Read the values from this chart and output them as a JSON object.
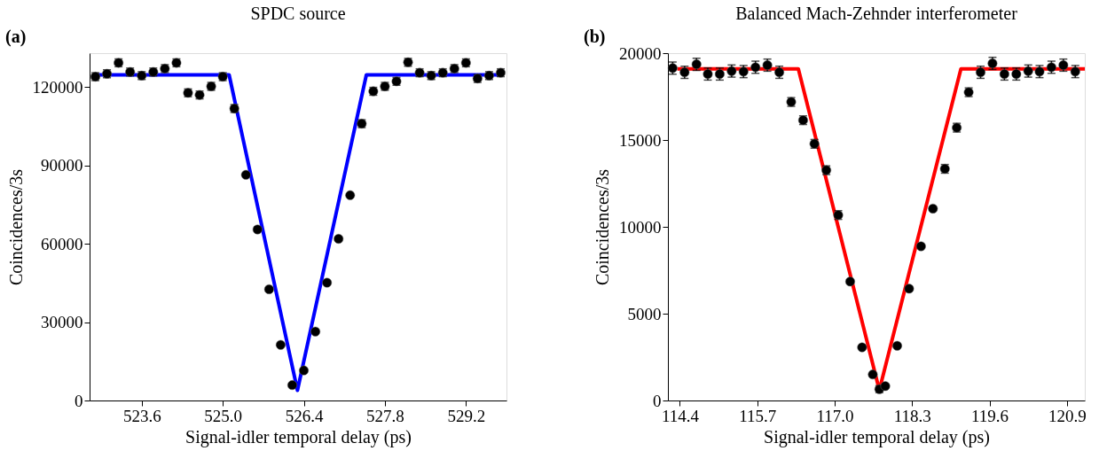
{
  "chart_data": [
    {
      "type": "scatter",
      "title": "SPDC source",
      "xlabel": "Signal-idler temporal delay (ps)",
      "ylabel": "Coincidences/3s",
      "annotations": [
        "(a)"
      ],
      "xlim": [
        522.7,
        529.9
      ],
      "ylim": [
        0,
        133000
      ],
      "xticks": [
        523.6,
        {
          "value": 525,
          "label": "525.0"
        },
        526.4,
        527.8,
        529.2
      ],
      "yticks": [
        0,
        30000,
        60000,
        90000,
        120000
      ],
      "grid": false,
      "series": [
        {
          "marker": "circle",
          "color": "#000000",
          "x": [
            522.8,
            523.0,
            523.2,
            523.4,
            523.6,
            523.8,
            524.0,
            524.2,
            524.4,
            524.6,
            524.8,
            525.0,
            525.2,
            525.4,
            525.6,
            525.8,
            526.0,
            526.2,
            526.4,
            526.6,
            526.8,
            527.0,
            527.2,
            527.4,
            527.6,
            527.8,
            528.0,
            528.2,
            528.4,
            528.6,
            528.8,
            529.0,
            529.2,
            529.4,
            529.6,
            529.8
          ],
          "values": [
            124000,
            125100,
            129300,
            125800,
            124400,
            125800,
            127100,
            129300,
            117800,
            117000,
            120300,
            124000,
            111800,
            86400,
            65500,
            42600,
            21300,
            5900,
            11500,
            26400,
            45100,
            61900,
            78600,
            106000,
            118400,
            120300,
            122200,
            129500,
            125500,
            124400,
            125500,
            127100,
            129300,
            123300,
            124400,
            125500
          ],
          "errors": [
            1500,
            1500,
            1500,
            1500,
            1500,
            1500,
            1500,
            1500,
            1500,
            1500,
            1500,
            1500,
            1500,
            null,
            null,
            null,
            null,
            null,
            null,
            null,
            null,
            null,
            null,
            1500,
            1500,
            1500,
            1500,
            1500,
            1500,
            1500,
            1500,
            1500,
            1500,
            1500,
            1500,
            1500
          ]
        },
        {
          "type": "line",
          "color": "#0000ff",
          "x": [
            522.8,
            525.11,
            526.29,
            527.48,
            529.8
          ],
          "values": [
            124700,
            124700,
            3900,
            124700,
            124700
          ]
        }
      ]
    },
    {
      "type": "scatter",
      "title": "Balanced Mach-Zehnder interferometer",
      "xlabel": "Signal-idler temporal delay (ps)",
      "ylabel": "Coincidences/3s",
      "annotations": [
        "(b)"
      ],
      "xlim": [
        114.2,
        121.2
      ],
      "ylim": [
        0,
        20000
      ],
      "xticks": [
        114.4,
        115.7,
        {
          "value": 117,
          "label": "117.0"
        },
        118.3,
        119.6,
        120.9
      ],
      "yticks": [
        0,
        5000,
        10000,
        15000,
        20000
      ],
      "grid": false,
      "series": [
        {
          "marker": "circle",
          "color": "#000000",
          "x": [
            114.28,
            114.48,
            114.68,
            114.87,
            115.07,
            115.27,
            115.47,
            115.67,
            115.87,
            116.07,
            116.27,
            116.47,
            116.66,
            116.86,
            117.06,
            117.26,
            117.46,
            117.64,
            117.75,
            117.85,
            118.05,
            118.25,
            118.45,
            118.65,
            118.85,
            119.05,
            119.25,
            119.45,
            119.65,
            119.85,
            120.05,
            120.25,
            120.44,
            120.64,
            120.84,
            121.04
          ],
          "values": [
            19140,
            18900,
            19360,
            18800,
            18800,
            18970,
            18940,
            19190,
            19310,
            18900,
            17190,
            16140,
            14780,
            13260,
            10680,
            6850,
            3060,
            1500,
            650,
            830,
            3150,
            6440,
            8880,
            11050,
            13340,
            15710,
            17750,
            18900,
            19410,
            18800,
            18800,
            18970,
            18940,
            19190,
            19310,
            18940
          ],
          "errors": [
            350,
            350,
            350,
            350,
            350,
            350,
            350,
            350,
            350,
            350,
            250,
            250,
            250,
            250,
            250,
            null,
            null,
            null,
            200,
            null,
            null,
            null,
            null,
            null,
            250,
            250,
            250,
            350,
            350,
            350,
            350,
            350,
            350,
            350,
            350,
            350
          ]
        },
        {
          "type": "line",
          "color": "#ff0000",
          "x": [
            114.36,
            116.39,
            117.75,
            119.12,
            121.2
          ],
          "values": [
            19100,
            19100,
            600,
            19100,
            19100
          ]
        }
      ]
    }
  ]
}
